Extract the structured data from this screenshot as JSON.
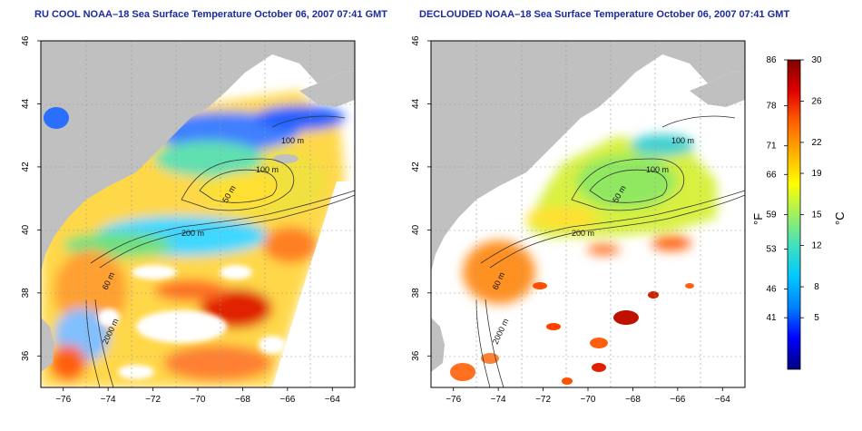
{
  "panels": [
    {
      "title": "RU COOL NOAA–18 Sea Surface Temperature October 06, 2007 07:41 GMT",
      "contour_labels": [
        "100 m",
        "100 m",
        "50 m",
        "200 m",
        "60 m",
        "2000 m"
      ]
    },
    {
      "title": "DECLOUDED NOAA–18 Sea Surface Temperature October 06, 2007 07:41 GMT",
      "contour_labels": [
        "100 m",
        "100 m",
        "50 m",
        "200 m",
        "60 m",
        "2000 m"
      ]
    }
  ],
  "axes": {
    "x_ticks": [
      "−76",
      "−74",
      "−72",
      "−70",
      "−68",
      "−66",
      "−64"
    ],
    "y_ticks": [
      "46",
      "44",
      "42",
      "40",
      "38",
      "36"
    ],
    "x_range": [
      -77,
      -63
    ],
    "y_range": [
      35,
      46
    ]
  },
  "colorbar": {
    "left_label": "°F",
    "right_label": "°C",
    "f_ticks": [
      "86",
      "78",
      "71",
      "66",
      "59",
      "53",
      "46",
      "41"
    ],
    "c_ticks": [
      "30",
      "26",
      "22",
      "19",
      "15",
      "12",
      "8",
      "5"
    ],
    "colors": [
      "#000080",
      "#0000ff",
      "#0080ff",
      "#00c8ff",
      "#40e0c0",
      "#a0f060",
      "#ffff00",
      "#ffb000",
      "#ff6000",
      "#e00000",
      "#800000"
    ]
  },
  "colors": {
    "land": "#c0c0c0",
    "cloud_mask": "#ffffff",
    "contour": "#333333",
    "title": "#1a2aa0"
  }
}
